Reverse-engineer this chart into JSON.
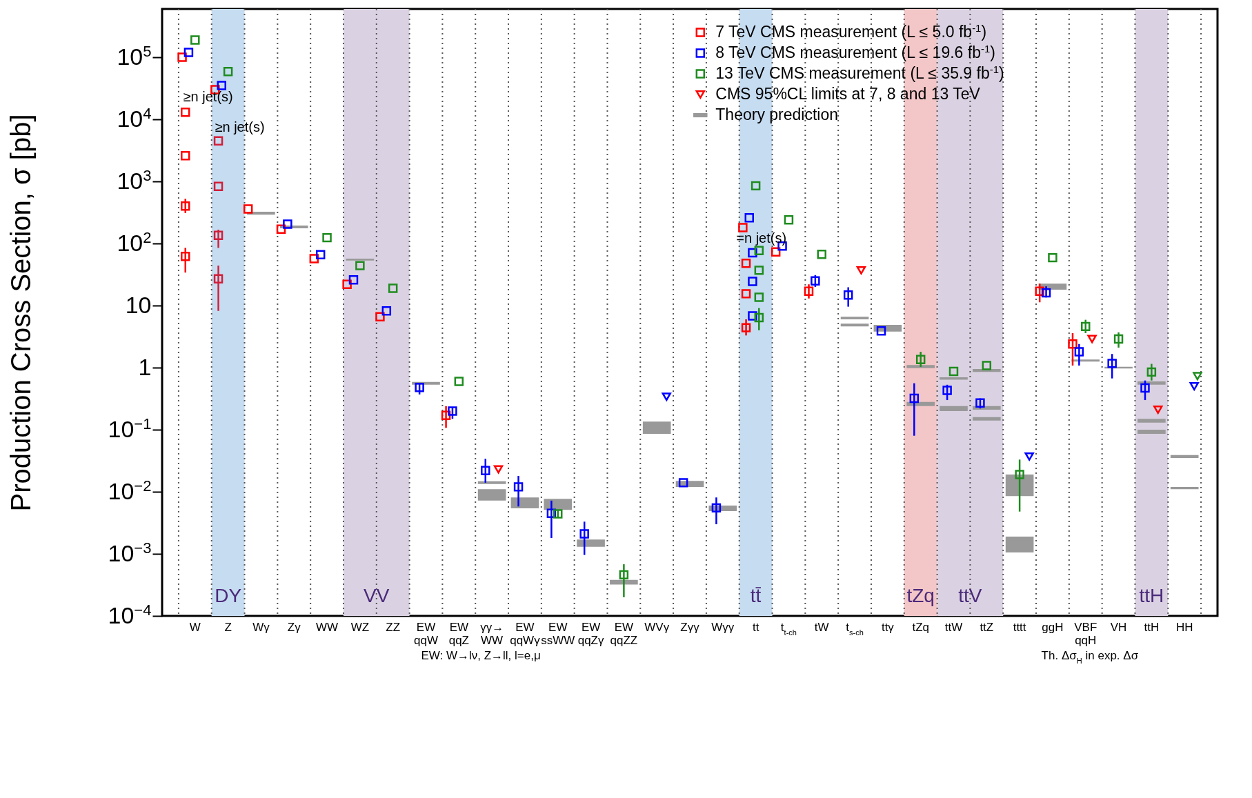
{
  "chart_data": {
    "type": "scatter",
    "ylabel": "Production Cross Section,  σ [pb]",
    "log": "y",
    "marker": "square",
    "grid": "x",
    "legend": "top right",
    "categories": [
      "W",
      "Z",
      "Wγ",
      "Zγ",
      "WW",
      "WZ",
      "ZZ",
      "EW\nqqW",
      "EW\nqqZ",
      "γγ→\nWW",
      "EW\nqqWγ",
      "EW\nssWW",
      "EW\nqqZγ",
      "EW\nqqZZ",
      "WVγ",
      "Zγγ",
      "Wγγ",
      "tt",
      "t$_{t-ch}$",
      "tW",
      "t$_{s-ch}$",
      "ttγ",
      "tZq",
      "ttW",
      "ttZ",
      "tttt",
      "ggH",
      "VBF\nqqH",
      "VH",
      "ttH",
      "HH"
    ],
    "ylim": [
      0.0001,
      600000
    ],
    "yticks": [
      {
        "value": 0.0001,
        "label": "10$^{−4}$"
      },
      {
        "value": 0.001,
        "label": "10$^{−3}$"
      },
      {
        "value": 0.01,
        "label": "10$^{−2}$"
      },
      {
        "value": 0.1,
        "label": "10$^{−1}$"
      },
      1,
      10,
      {
        "value": 100,
        "label": "10$^{2}$"
      },
      {
        "value": 1000,
        "label": "10$^{3}$"
      },
      {
        "value": 10000,
        "label": "10$^{4}$"
      },
      {
        "value": 100000,
        "label": "10$^{5}$"
      }
    ],
    "series": [
      {
        "name": "7 TeV CMS measurement (L ≤ 5.0 fb$^{-1}$)",
        "color": "#ff0000",
        "x": [
          "W",
          "Z",
          "Wγ",
          "Zγ",
          "WW",
          "WZ",
          "ZZ",
          "EW\nqqZ",
          "tt",
          "t$_{t-ch}$",
          "tW",
          "ggH",
          "VBF\nqqH"
        ],
        "values": [
          100000,
          30000,
          360,
          170,
          57,
          22,
          6.6,
          0.17,
          180,
          73,
          17,
          17,
          2.4
        ],
        "errors": [
          null,
          null,
          null,
          null,
          null,
          null,
          null,
          [
            0.107,
            0.24
          ],
          null,
          null,
          [
            13,
            22
          ],
          [
            11.3,
            22.5
          ],
          [
            1.08,
            3.6
          ]
        ]
      },
      {
        "colors": [
          "#ff0000",
          "#ff0000",
          "#ff0000",
          "#ff0000",
          "#d0203a",
          "#d0203a",
          "#d0203a",
          "#d0203a",
          "#ff0000",
          "#ff0000",
          "#ff0000"
        ],
        "x": [
          "W",
          "W",
          "W",
          "W",
          "Z",
          "Z",
          "Z",
          "Z",
          "tt",
          "tt",
          "tt"
        ],
        "values": [
          13000,
          2600,
          400,
          62,
          4500,
          830,
          135,
          27,
          48,
          15.5,
          4.4
        ],
        "errors": [
          null,
          null,
          [
            310,
            525
          ],
          [
            34,
            85
          ],
          null,
          null,
          [
            85,
            167
          ],
          [
            8.2,
            44
          ],
          null,
          null,
          [
            3.3,
            6.0
          ]
        ]
      },
      {
        "name": "8 TeV CMS measurement (L ≤ 19.6 fb$^{-1}$)",
        "color": "#0000ff",
        "x": [
          "W",
          "Z",
          "Zγ",
          "WW",
          "WZ",
          "ZZ",
          "EW\nqqW",
          "EW\nqqZ",
          "γγ→\nWW",
          "EW\nqqWγ",
          "EW\nssWW",
          "EW\nqqZγ",
          "Zγγ",
          "Wγγ",
          "tt",
          "t$_{t-ch}$",
          "tW",
          "t$_{s-ch}$",
          "ttγ",
          "tZq",
          "ttW",
          "ttZ",
          "ggH",
          "VBF\nqqH",
          "VH",
          "ttH"
        ],
        "values": [
          120000,
          35000,
          205,
          66,
          26,
          8.2,
          0.48,
          0.2,
          0.022,
          0.012,
          0.0045,
          0.0021,
          0.014,
          0.0055,
          260,
          91,
          25,
          14.8,
          3.9,
          0.32,
          0.43,
          0.27,
          16,
          1.8,
          1.17,
          0.47
        ],
        "errors": [
          null,
          null,
          null,
          null,
          null,
          null,
          [
            0.37,
            0.57
          ],
          [
            0.15,
            0.23
          ],
          [
            0.014,
            0.034
          ],
          [
            0.0058,
            0.018
          ],
          [
            0.0018,
            0.0072
          ],
          [
            0.00096,
            0.0033
          ],
          null,
          [
            0.003,
            0.0081
          ],
          null,
          null,
          [
            20,
            31
          ],
          [
            9.6,
            19.7
          ],
          null,
          [
            0.08,
            0.56
          ],
          [
            0.3,
            0.53
          ],
          [
            0.22,
            0.32
          ],
          [
            13.5,
            20.4
          ],
          [
            1.08,
            2.4
          ],
          [
            0.67,
            1.66
          ],
          [
            0.3,
            0.62
          ]
        ]
      },
      {
        "color": "#0000ff",
        "x": [
          "tt",
          "tt",
          "tt"
        ],
        "values": [
          71,
          24.5,
          6.8
        ]
      },
      {
        "name": "13 TeV CMS measurement (L ≤ 35.9 fb$^{-1}$)",
        "color": "#1e8c1e",
        "x": [
          "W",
          "Z",
          "WW",
          "WZ",
          "ZZ",
          "EW\nqqZ",
          "EW\nssWW",
          "EW\nqqZZ",
          "tt",
          "t$_{t-ch}$",
          "tW",
          "tZq",
          "ttW",
          "ttZ",
          "tttt",
          "ggH",
          "VBF\nqqH",
          "VH",
          "ttH"
        ],
        "values": [
          190000,
          59000,
          124,
          44,
          19,
          0.6,
          0.0044,
          0.00046,
          850,
          240,
          67,
          1.35,
          0.87,
          1.08,
          0.019,
          59,
          4.6,
          2.9,
          0.85
        ],
        "errors": [
          null,
          null,
          null,
          null,
          null,
          null,
          [
            0.0038,
            0.005
          ],
          [
            0.0002,
            0.00068
          ],
          null,
          null,
          null,
          [
            1.03,
            1.8
          ],
          null,
          null,
          [
            0.0048,
            0.033
          ],
          null,
          [
            3.6,
            5.9
          ],
          [
            2.1,
            3.7
          ],
          [
            0.62,
            1.15
          ]
        ]
      },
      {
        "color": "#1e8c1e",
        "x": [
          "tt",
          "tt",
          "tt",
          "tt"
        ],
        "values": [
          77,
          37,
          13.6,
          6.4
        ],
        "errors": [
          null,
          null,
          null,
          [
            4.0,
            9.1
          ]
        ]
      },
      {
        "name": "CMS 95%CL limits at 7, 8 and 13 TeV",
        "color": "#ff0000",
        "marker": "triangle",
        "x": [
          "γγ→\nWW",
          "t$_{s-ch}$",
          "VBF\nqqH",
          "ttH"
        ],
        "values": [
          0.023,
          37,
          2.9,
          0.21
        ]
      },
      {
        "color": "#0000ff",
        "marker": "triangle",
        "x": [
          "WVγ",
          "tttt",
          "HH"
        ],
        "values": [
          0.34,
          0.037,
          0.5
        ]
      },
      {
        "color": "#1e8c1e",
        "marker": "triangle",
        "x": [
          "HH"
        ],
        "values": [
          0.73
        ]
      },
      {
        "name": "Theory prediction",
        "type": "bar",
        "color": "#999999",
        "x": [
          "Wγ",
          "Zγ",
          "WZ",
          "EW\nqqW",
          "γγ→\nWW",
          "EW\nqqWγ",
          "EW\nssWW",
          "EW\nqqZγ",
          "EW\nqqZZ",
          "WVγ",
          "Zγγ",
          "Wγγ",
          "t$_{s-ch}$",
          "ttγ",
          "tZq",
          "ttW",
          "ttZ",
          "tttt",
          "ggH",
          "VBF\nqqH",
          "VH",
          "ttH",
          "HH"
        ],
        "base": [
          292,
          176,
          53,
          0.53,
          0.0072,
          0.0054,
          0.0051,
          0.0013,
          0.00032,
          0.086,
          0.012,
          0.0049,
          4.6,
          3.8,
          0.24,
          0.2,
          0.14,
          0.00105,
          18,
          1.25,
          0.97,
          0.086,
          0.011
        ],
        "values": [
          32,
          19,
          4,
          0.06,
          0.0038,
          0.0027,
          0.0026,
          0.0004,
          6e-05,
          0.049,
          0.003,
          0.0011,
          0.5,
          1.1,
          0.04,
          0.04,
          0.02,
          0.00085,
          4.5,
          0.1,
          0.06,
          0.014,
          0.001
        ]
      },
      {
        "type": "bar",
        "color": "#999999",
        "x": [
          "γγ→\nWW",
          "t$_{s-ch}$",
          "tZq",
          "ttW",
          "ttZ",
          "tttt",
          "ttH",
          "HH"
        ],
        "base": [
          0.0133,
          6.0,
          0.98,
          0.64,
          0.21,
          0.0085,
          0.13,
          0.035
        ],
        "values": [
          0.0015,
          0.6,
          0.12,
          0.06,
          0.03,
          0.0105,
          0.02,
          0.004
        ]
      },
      {
        "type": "bar",
        "color": "#999999",
        "x": [
          "ttZ",
          "ttH"
        ],
        "base": [
          0.85,
          0.53
        ],
        "values": [
          0.1,
          0.07
        ]
      }
    ],
    "bands": [
      {
        "axis": "x",
        "from": "Z",
        "to": "Z",
        "label": "DY",
        "color": "#c6dcf1"
      },
      {
        "axis": "x",
        "from": "WZ",
        "to": "ZZ",
        "label": "VV",
        "color": "#dad2e2"
      },
      {
        "axis": "x",
        "from": "tt",
        "to": "tt",
        "label": "tt̄",
        "color": "#c6dcf1"
      },
      {
        "axis": "x",
        "from": "tZq",
        "to": "tZq",
        "label": "tZq",
        "color": "#f3c6c8"
      },
      {
        "axis": "x",
        "from": "ttW",
        "to": "ttZ",
        "label": "ttV",
        "color": "#dad2e2"
      },
      {
        "axis": "x",
        "from": "ttH",
        "to": "ttH",
        "label": "ttH",
        "color": "#dad2e2"
      }
    ],
    "annotations": [
      "≥n jet(s)",
      "≥n jet(s)",
      "=n jet(s)",
      "EW: W→lν, Z→ll, l=e,μ",
      "Th. Δσ$_{H}$ in exp. Δσ"
    ]
  }
}
